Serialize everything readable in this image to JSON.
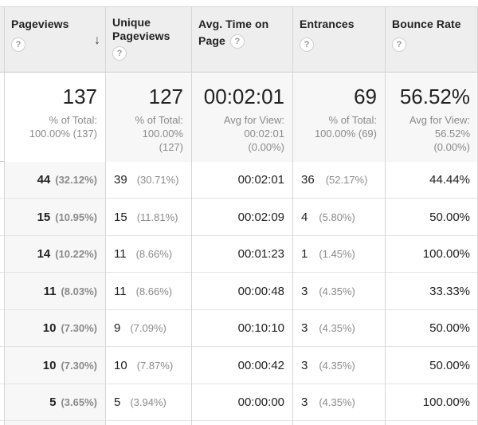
{
  "headers": [
    {
      "title": "Pageviews",
      "help": "?",
      "sort": "↓"
    },
    {
      "title": "Unique Pageviews",
      "help": "?"
    },
    {
      "title": "Avg. Time on Page",
      "help": "?"
    },
    {
      "title": "Entrances",
      "help": "?"
    },
    {
      "title": "Bounce Rate",
      "help": "?"
    }
  ],
  "totals": [
    {
      "value": "137",
      "sub1": "% of Total:",
      "sub2": "100.00% (137)",
      "sub3": ""
    },
    {
      "value": "127",
      "sub1": "% of Total:",
      "sub2": "100.00%",
      "sub3": "(127)"
    },
    {
      "value": "00:02:01",
      "sub1": "Avg for View:",
      "sub2": "00:02:01",
      "sub3": "(0.00%)"
    },
    {
      "value": "69",
      "sub1": "% of Total:",
      "sub2": "100.00% (69)",
      "sub3": ""
    },
    {
      "value": "56.52%",
      "sub1": "Avg for View:",
      "sub2": "56.52%",
      "sub3": "(0.00%)"
    }
  ],
  "rows": [
    {
      "pv": "44",
      "pv_pct": "(32.12%)",
      "upv": "39",
      "upv_pct": "(30.71%)",
      "time": "00:02:01",
      "ent": "36",
      "ent_pct": "(52.17%)",
      "bounce": "44.44%"
    },
    {
      "pv": "15",
      "pv_pct": "(10.95%)",
      "upv": "15",
      "upv_pct": "(11.81%)",
      "time": "00:02:09",
      "ent": "4",
      "ent_pct": "(5.80%)",
      "bounce": "50.00%"
    },
    {
      "pv": "14",
      "pv_pct": "(10.22%)",
      "upv": "11",
      "upv_pct": "(8.66%)",
      "time": "00:01:23",
      "ent": "1",
      "ent_pct": "(1.45%)",
      "bounce": "100.00%"
    },
    {
      "pv": "11",
      "pv_pct": "(8.03%)",
      "upv": "11",
      "upv_pct": "(8.66%)",
      "time": "00:00:48",
      "ent": "3",
      "ent_pct": "(4.35%)",
      "bounce": "33.33%"
    },
    {
      "pv": "10",
      "pv_pct": "(7.30%)",
      "upv": "9",
      "upv_pct": "(7.09%)",
      "time": "00:10:10",
      "ent": "3",
      "ent_pct": "(4.35%)",
      "bounce": "50.00%"
    },
    {
      "pv": "10",
      "pv_pct": "(7.30%)",
      "upv": "10",
      "upv_pct": "(7.87%)",
      "time": "00:00:42",
      "ent": "3",
      "ent_pct": "(4.35%)",
      "bounce": "50.00%"
    },
    {
      "pv": "5",
      "pv_pct": "(3.65%)",
      "upv": "5",
      "upv_pct": "(3.94%)",
      "time": "00:00:00",
      "ent": "3",
      "ent_pct": "(4.35%)",
      "bounce": "100.00%"
    }
  ]
}
